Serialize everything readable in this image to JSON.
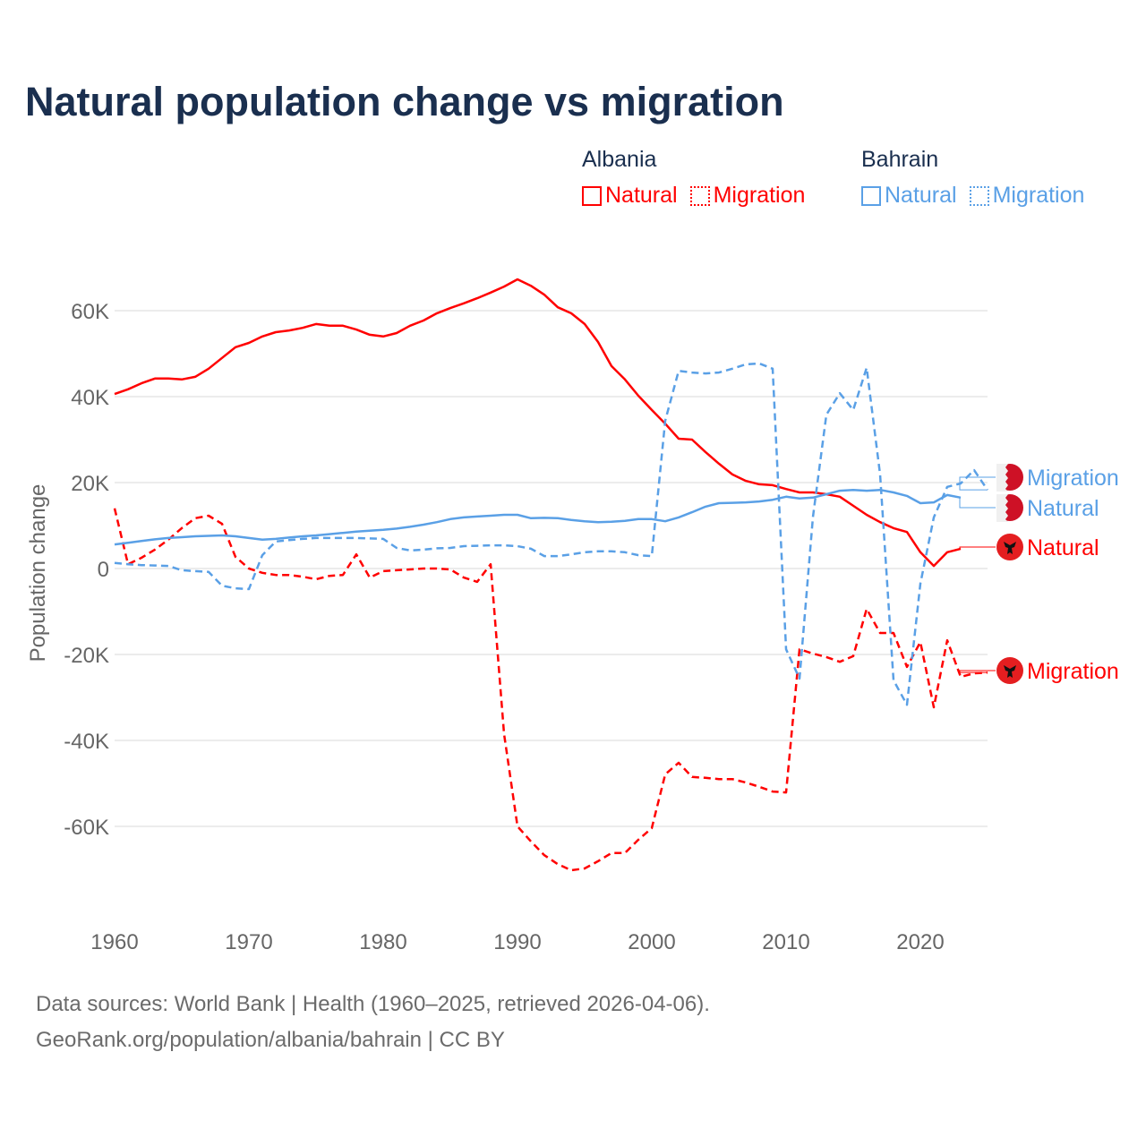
{
  "title": "Natural population change vs migration",
  "legend": {
    "groups": [
      {
        "name": "Albania",
        "items": [
          {
            "label": "Natural",
            "style": "solid"
          },
          {
            "label": "Migration",
            "style": "dotted"
          }
        ],
        "color": "#ff0000"
      },
      {
        "name": "Bahrain",
        "items": [
          {
            "label": "Natural",
            "style": "solid"
          },
          {
            "label": "Migration",
            "style": "dotted"
          }
        ],
        "color": "#5aa0e6"
      }
    ]
  },
  "footer": {
    "line1": "Data sources: World Bank | Health (1960–2025, retrieved 2026-04-06).",
    "line2": "GeoRank.org/population/albania/bahrain | CC BY"
  },
  "chart_data": {
    "type": "line",
    "title": "Natural population change vs migration",
    "xlabel": "",
    "ylabel": "Population change",
    "xlim": [
      1960,
      2025
    ],
    "ylim": [
      -80000,
      75000
    ],
    "x_ticks": [
      1960,
      1970,
      1980,
      1990,
      2000,
      2010,
      2020
    ],
    "y_ticks": [
      {
        "v": 60000,
        "label": "60K"
      },
      {
        "v": 40000,
        "label": "40K"
      },
      {
        "v": 20000,
        "label": "20K"
      },
      {
        "v": 0,
        "label": "0"
      },
      {
        "v": -20000,
        "label": "-20K"
      },
      {
        "v": -40000,
        "label": "-40K"
      },
      {
        "v": -60000,
        "label": "-60K"
      }
    ],
    "grid": true,
    "series": [
      {
        "name": "Albania Natural",
        "end_label": "Natural",
        "flag": "albania",
        "color": "#ff0000",
        "dashed": false,
        "start": 1960,
        "values": [
          40.6,
          41.7,
          43.1,
          44.2,
          44.2,
          44.0,
          44.6,
          46.5,
          49.0,
          51.5,
          52.5,
          54.0,
          55.0,
          55.4,
          56.0,
          56.9,
          56.5,
          56.5,
          55.6,
          54.4,
          54.0,
          54.8,
          56.5,
          57.7,
          59.4,
          60.6,
          61.7,
          62.9,
          64.2,
          65.6,
          67.3,
          65.8,
          63.7,
          60.8,
          59.4,
          56.9,
          52.7,
          47.1,
          44.0,
          40.2,
          36.9,
          33.7,
          30.2,
          30.0,
          27.1,
          24.4,
          21.9,
          20.4,
          19.6,
          19.4,
          18.5,
          17.7,
          17.7,
          17.3,
          16.7,
          14.6,
          12.5,
          10.8,
          9.4,
          8.5,
          3.8,
          0.6,
          3.8,
          4.6
        ]
      },
      {
        "name": "Albania Migration",
        "end_label": "Migration",
        "flag": "albania",
        "color": "#ff0000",
        "dashed": true,
        "start": 1960,
        "values": [
          14.0,
          1.0,
          2.5,
          4.4,
          6.7,
          9.4,
          11.7,
          12.3,
          10.4,
          2.7,
          0.0,
          -1.0,
          -1.5,
          -1.5,
          -1.9,
          -2.5,
          -1.7,
          -1.5,
          3.3,
          -2.1,
          -0.6,
          -0.4,
          -0.2,
          0.0,
          0.0,
          -0.2,
          -2.1,
          -3.1,
          1.0,
          -38.5,
          -60.0,
          -63.5,
          -66.7,
          -68.8,
          -70.2,
          -69.8,
          -68.1,
          -66.2,
          -66.2,
          -63.1,
          -60.4,
          -47.9,
          -45.2,
          -48.5,
          -48.7,
          -49.0,
          -49.0,
          -49.8,
          -50.8,
          -51.9,
          -52.1,
          -18.8,
          -19.8,
          -20.6,
          -21.7,
          -20.4,
          -9.4,
          -15.0,
          -15.0,
          -22.9,
          -17.1,
          -32.3,
          -16.7,
          -25.2,
          -24.4,
          -24.2
        ]
      },
      {
        "name": "Bahrain Natural",
        "end_label": "Natural",
        "flag": "bahrain",
        "color": "#5aa0e6",
        "dashed": false,
        "start": 1960,
        "values": [
          5.6,
          6.0,
          6.4,
          6.8,
          7.1,
          7.3,
          7.5,
          7.6,
          7.7,
          7.5,
          7.1,
          6.7,
          6.9,
          7.2,
          7.5,
          7.7,
          8.0,
          8.3,
          8.6,
          8.8,
          9.0,
          9.3,
          9.7,
          10.2,
          10.8,
          11.5,
          11.9,
          12.1,
          12.3,
          12.5,
          12.5,
          11.7,
          11.8,
          11.7,
          11.3,
          11.0,
          10.8,
          10.9,
          11.1,
          11.5,
          11.5,
          11.0,
          11.9,
          13.1,
          14.4,
          15.2,
          15.3,
          15.4,
          15.6,
          16.0,
          16.7,
          16.3,
          16.5,
          17.3,
          18.1,
          18.3,
          18.1,
          18.3,
          17.7,
          16.9,
          15.2,
          15.4,
          17.1,
          16.5
        ]
      },
      {
        "name": "Bahrain Migration",
        "end_label": "Migration",
        "flag": "bahrain",
        "color": "#5aa0e6",
        "dashed": true,
        "start": 1960,
        "values": [
          1.3,
          1.0,
          0.8,
          0.7,
          0.6,
          -0.4,
          -0.6,
          -0.8,
          -4.0,
          -4.6,
          -4.8,
          3.1,
          6.3,
          6.6,
          6.9,
          7.1,
          7.1,
          7.1,
          7.1,
          7.0,
          6.9,
          4.8,
          4.2,
          4.4,
          4.7,
          4.8,
          5.2,
          5.3,
          5.4,
          5.4,
          5.2,
          4.6,
          2.9,
          2.9,
          3.3,
          3.8,
          4.0,
          4.0,
          3.8,
          3.1,
          2.9,
          34.4,
          46.0,
          45.6,
          45.4,
          45.6,
          46.5,
          47.5,
          47.7,
          46.5,
          -18.8,
          -25.6,
          12.0,
          35.8,
          40.8,
          36.9,
          46.7,
          21.9,
          -26.0,
          -31.7,
          -3.5,
          11.9,
          19.0,
          19.8,
          22.9,
          18.3
        ]
      }
    ]
  }
}
